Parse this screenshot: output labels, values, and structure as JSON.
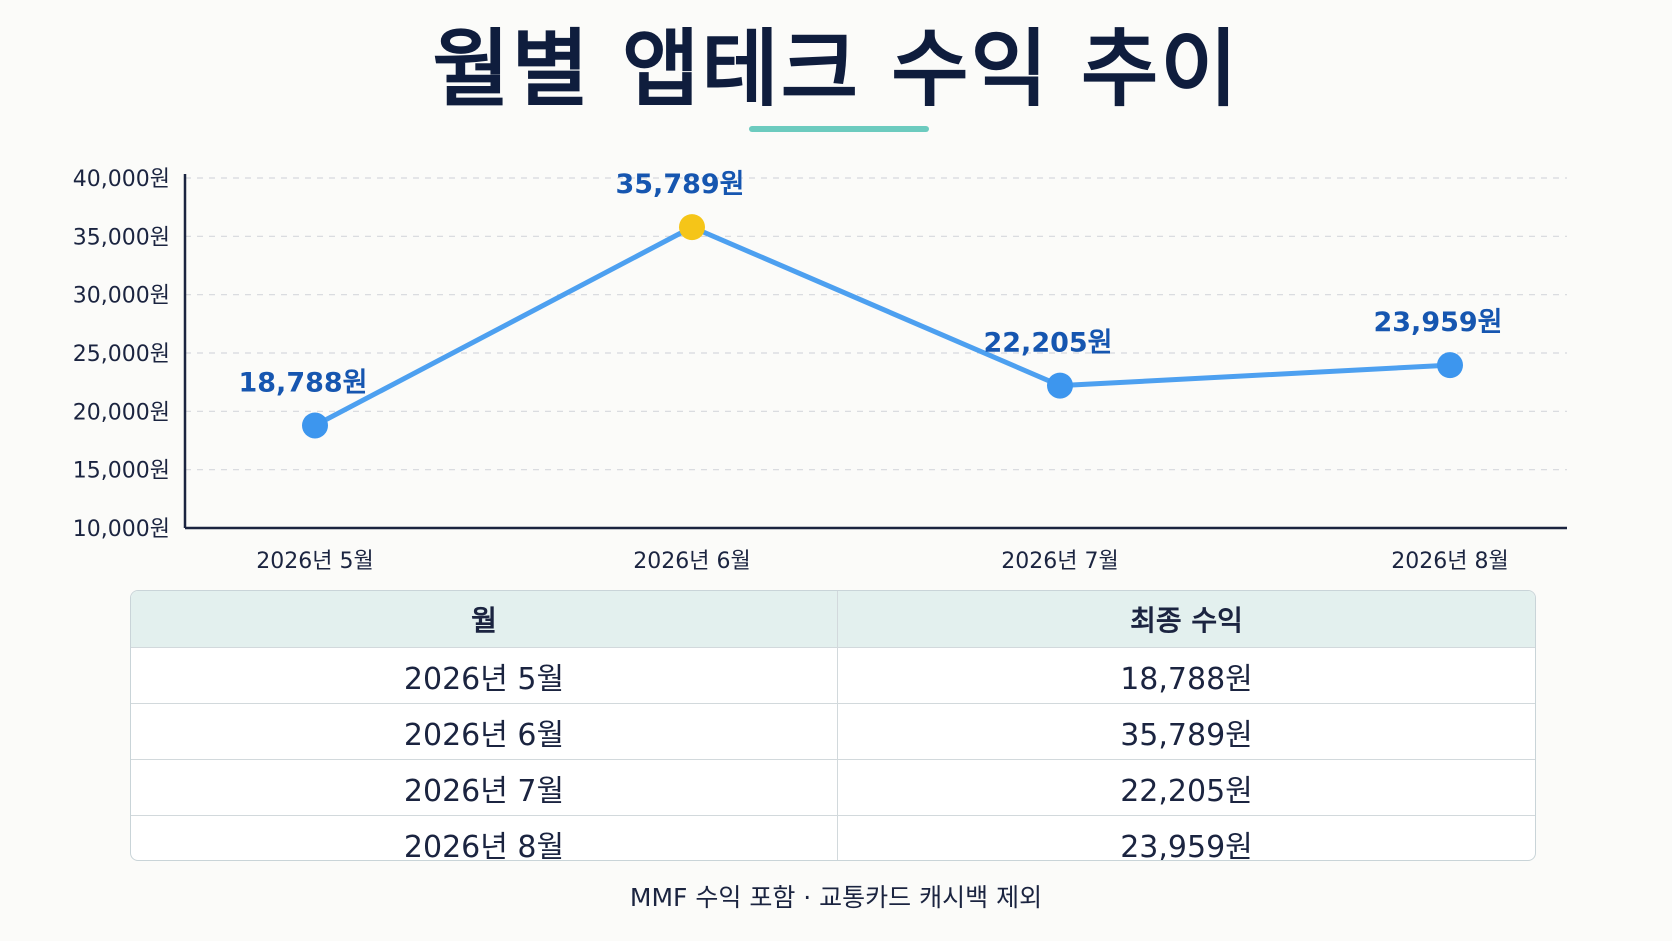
{
  "title": "월별 앱테크 수익 추이",
  "colors": {
    "accent_line": "#4da0f0",
    "point": "#3d96ee",
    "peak_point": "#f5c518",
    "label_text": "#1656b0",
    "underline": "#6ccbbf",
    "table_header_bg": "#e3f0ee",
    "axis": "#1b2440",
    "grid": "#d5d8dd"
  },
  "chart_data": {
    "type": "line",
    "categories": [
      "2026년 5월",
      "2026년 6월",
      "2026년 7월",
      "2026년 8월"
    ],
    "series": [
      {
        "values": [
          18788,
          35789,
          22205,
          23959
        ]
      }
    ],
    "data_labels": [
      "18,788원",
      "35,789원",
      "22,205원",
      "23,959원"
    ],
    "highlight_index": 1,
    "ylim": [
      10000,
      40000
    ],
    "yticks": [
      10000,
      15000,
      20000,
      25000,
      30000,
      35000,
      40000
    ],
    "ytick_labels": [
      "10,000원",
      "15,000원",
      "20,000원",
      "25,000원",
      "30,000원",
      "35,000원",
      "40,000원"
    ],
    "grid": true,
    "xlabel": "",
    "ylabel": ""
  },
  "table": {
    "headers": [
      "월",
      "최종 수익"
    ],
    "rows": [
      [
        "2026년 5월",
        "18,788원"
      ],
      [
        "2026년 6월",
        "35,789원"
      ],
      [
        "2026년 7월",
        "22,205원"
      ],
      [
        "2026년 8월",
        "23,959원"
      ]
    ]
  },
  "footnote": "MMF 수익 포함 · 교통카드 캐시백 제외"
}
